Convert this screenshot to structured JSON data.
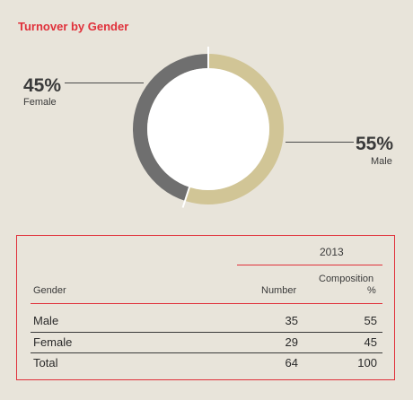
{
  "title": "Turnover by Gender",
  "chart_data": {
    "type": "pie",
    "title": "Turnover by Gender",
    "slices": [
      {
        "name": "Female",
        "value": 45,
        "label": "45%",
        "color": "#6f6f6f"
      },
      {
        "name": "Male",
        "value": 55,
        "label": "55%",
        "color": "#d1c596"
      }
    ]
  },
  "table": {
    "year": "2013",
    "headers": {
      "gender": "Gender",
      "number": "Number",
      "composition_line1": "Composition",
      "composition_line2": "%"
    },
    "rows": [
      {
        "gender": "Male",
        "number": "35",
        "composition": "55"
      },
      {
        "gender": "Female",
        "number": "29",
        "composition": "45"
      },
      {
        "gender": "Total",
        "number": "64",
        "composition": "100"
      }
    ]
  },
  "colors": {
    "accent": "#e0303a",
    "background": "#e8e4da"
  }
}
